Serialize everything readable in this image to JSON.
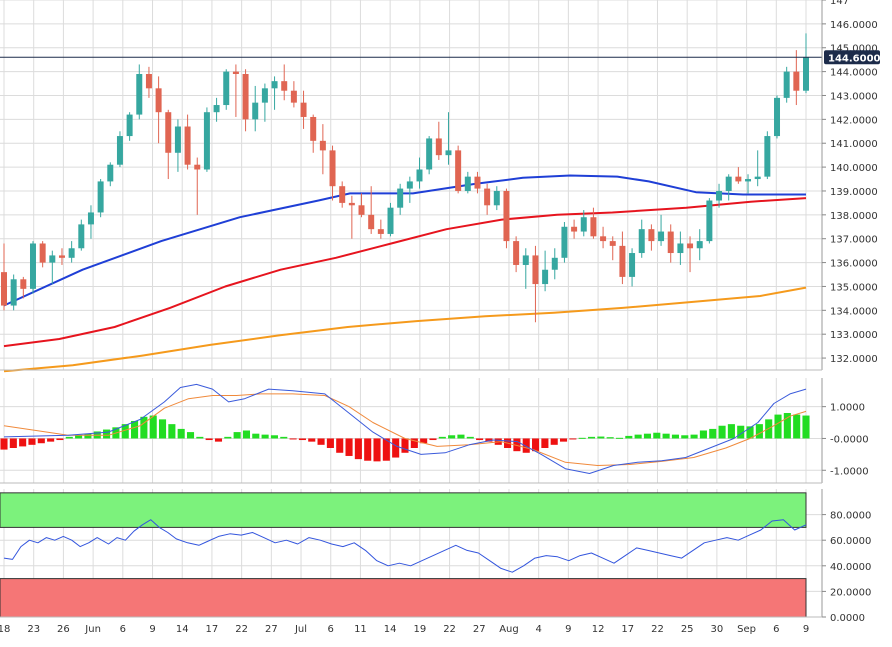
{
  "colors": {
    "up": "#36a7a0",
    "down": "#e06552",
    "sma_fast": "#1f3fd6",
    "sma_mid": "#e6141e",
    "sma_slow": "#f59a1c",
    "macd_line": "#3b5bdb",
    "signal_line": "#f08a3c",
    "hist_pos": "#22dd22",
    "hist_neg": "#ee1111",
    "rsi_line": "#3355dd",
    "overbought_zone": "#7cf27c",
    "oversold_zone": "#f57676",
    "grid": "#dcdcdc",
    "price_tag": "#1c2b4a"
  },
  "last_price": "144.6000",
  "chart_data": [
    {
      "type": "candlestick",
      "x_labels": [
        "18",
        "23",
        "26",
        "Jun",
        "6",
        "9",
        "14",
        "17",
        "22",
        "27",
        "Jul",
        "6",
        "11",
        "14",
        "19",
        "22",
        "27",
        "Aug",
        "4",
        "9",
        "12",
        "17",
        "22",
        "25",
        "30",
        "Sep",
        "6",
        "9"
      ],
      "y_ticks": [
        "132.0000",
        "133.0000",
        "134.0000",
        "135.0000",
        "136.0000",
        "137.0000",
        "138.0000",
        "139.0000",
        "140.0000",
        "141.0000",
        "142.0000",
        "143.0000",
        "144.0000",
        "145.0000",
        "146.0000",
        "147"
      ],
      "ylim": [
        131.5,
        147.0
      ],
      "candles": [
        [
          135.6,
          136.8,
          134.0,
          134.2
        ],
        [
          134.2,
          135.5,
          134.0,
          135.3
        ],
        [
          135.3,
          135.4,
          134.5,
          134.9
        ],
        [
          134.9,
          136.9,
          134.7,
          136.8
        ],
        [
          136.8,
          136.9,
          135.8,
          136.0
        ],
        [
          136.0,
          136.5,
          135.1,
          136.3
        ],
        [
          136.3,
          136.6,
          135.9,
          136.2
        ],
        [
          136.2,
          136.9,
          136.0,
          136.6
        ],
        [
          136.6,
          137.8,
          136.5,
          137.6
        ],
        [
          137.6,
          138.4,
          137.0,
          138.1
        ],
        [
          138.1,
          139.5,
          137.9,
          139.4
        ],
        [
          139.4,
          140.2,
          139.2,
          140.1
        ],
        [
          140.1,
          141.5,
          140.0,
          141.3
        ],
        [
          141.3,
          142.3,
          141.1,
          142.2
        ],
        [
          142.2,
          144.3,
          142.0,
          143.9
        ],
        [
          143.9,
          144.2,
          142.9,
          143.3
        ],
        [
          143.3,
          143.8,
          141.0,
          142.3
        ],
        [
          142.3,
          142.4,
          139.5,
          140.6
        ],
        [
          140.6,
          142.0,
          139.8,
          141.7
        ],
        [
          141.7,
          142.2,
          139.9,
          140.1
        ],
        [
          140.1,
          140.4,
          138.0,
          139.9
        ],
        [
          139.9,
          142.5,
          139.8,
          142.3
        ],
        [
          142.3,
          142.9,
          141.9,
          142.6
        ],
        [
          142.6,
          144.1,
          142.4,
          144.0
        ],
        [
          144.0,
          144.3,
          142.1,
          143.9
        ],
        [
          143.9,
          144.1,
          141.5,
          142.0
        ],
        [
          142.0,
          143.4,
          141.5,
          142.7
        ],
        [
          142.7,
          143.5,
          141.9,
          143.3
        ],
        [
          143.3,
          143.8,
          142.4,
          143.6
        ],
        [
          143.6,
          144.3,
          142.8,
          143.2
        ],
        [
          143.2,
          143.6,
          142.5,
          142.7
        ],
        [
          142.7,
          143.2,
          141.6,
          142.1
        ],
        [
          142.1,
          142.2,
          140.6,
          141.1
        ],
        [
          141.1,
          141.8,
          139.7,
          140.7
        ],
        [
          140.7,
          140.9,
          138.6,
          139.2
        ],
        [
          139.2,
          139.4,
          138.3,
          138.5
        ],
        [
          138.5,
          138.8,
          137.0,
          138.4
        ],
        [
          138.4,
          138.9,
          137.9,
          138.0
        ],
        [
          138.0,
          139.2,
          137.2,
          137.4
        ],
        [
          137.4,
          137.8,
          137.0,
          137.2
        ],
        [
          137.2,
          138.5,
          137.1,
          138.3
        ],
        [
          138.3,
          139.3,
          138.0,
          139.1
        ],
        [
          139.1,
          139.6,
          138.5,
          139.4
        ],
        [
          139.4,
          140.4,
          139.1,
          139.9
        ],
        [
          139.9,
          141.3,
          139.7,
          141.2
        ],
        [
          141.2,
          141.9,
          140.3,
          140.5
        ],
        [
          140.5,
          142.3,
          140.1,
          140.7
        ],
        [
          140.7,
          140.9,
          138.9,
          139.0
        ],
        [
          139.0,
          139.8,
          138.9,
          139.6
        ],
        [
          139.6,
          139.8,
          138.9,
          139.1
        ],
        [
          139.1,
          139.3,
          138.0,
          138.4
        ],
        [
          138.4,
          139.2,
          138.2,
          139.0
        ],
        [
          139.0,
          139.1,
          136.6,
          136.9
        ],
        [
          136.9,
          137.1,
          135.6,
          135.9
        ],
        [
          135.9,
          136.6,
          134.9,
          136.3
        ],
        [
          136.3,
          136.7,
          133.5,
          135.1
        ],
        [
          135.1,
          136.5,
          134.8,
          135.7
        ],
        [
          135.7,
          136.6,
          135.3,
          136.2
        ],
        [
          136.2,
          137.7,
          136.0,
          137.5
        ],
        [
          137.5,
          137.8,
          137.0,
          137.3
        ],
        [
          137.3,
          138.2,
          137.1,
          137.9
        ],
        [
          137.9,
          138.3,
          137.0,
          137.1
        ],
        [
          137.1,
          137.5,
          136.6,
          136.9
        ],
        [
          136.9,
          137.1,
          136.1,
          136.7
        ],
        [
          136.7,
          137.3,
          135.1,
          135.4
        ],
        [
          135.4,
          136.6,
          135.0,
          136.4
        ],
        [
          136.4,
          137.8,
          136.2,
          137.4
        ],
        [
          137.4,
          137.6,
          136.5,
          136.9
        ],
        [
          136.9,
          138.0,
          136.7,
          137.3
        ],
        [
          137.3,
          137.6,
          136.0,
          136.4
        ],
        [
          136.4,
          137.3,
          135.9,
          136.8
        ],
        [
          136.8,
          137.1,
          135.6,
          136.6
        ],
        [
          136.6,
          137.4,
          136.1,
          136.9
        ],
        [
          136.9,
          138.7,
          136.8,
          138.6
        ],
        [
          138.6,
          139.3,
          138.3,
          139.0
        ],
        [
          139.0,
          139.7,
          138.6,
          139.6
        ],
        [
          139.6,
          140.0,
          139.3,
          139.4
        ],
        [
          139.4,
          139.7,
          138.9,
          139.5
        ],
        [
          139.5,
          140.7,
          139.2,
          139.6
        ],
        [
          139.6,
          141.5,
          139.5,
          141.3
        ],
        [
          141.3,
          143.0,
          141.2,
          142.9
        ],
        [
          142.9,
          144.2,
          142.7,
          144.0
        ],
        [
          144.0,
          144.9,
          142.6,
          143.2
        ],
        [
          143.2,
          145.6,
          143.1,
          144.6
        ]
      ],
      "sma_fast": [
        [
          0,
          134.2
        ],
        [
          10,
          135.7
        ],
        [
          20,
          136.9
        ],
        [
          30,
          137.9
        ],
        [
          40,
          138.6
        ],
        [
          44,
          138.9
        ],
        [
          52,
          138.9
        ],
        [
          60,
          139.3
        ],
        [
          66,
          139.55
        ],
        [
          72,
          139.65
        ],
        [
          78,
          139.6
        ],
        [
          82,
          139.4
        ],
        [
          88,
          138.95
        ],
        [
          94,
          138.85
        ],
        [
          102,
          138.85
        ]
      ],
      "sma_mid": [
        [
          0,
          132.5
        ],
        [
          12,
          132.8
        ],
        [
          24,
          133.3
        ],
        [
          36,
          134.1
        ],
        [
          48,
          135.0
        ],
        [
          60,
          135.7
        ],
        [
          72,
          136.2
        ],
        [
          84,
          136.8
        ],
        [
          96,
          137.4
        ],
        [
          108,
          137.8
        ],
        [
          120,
          138.0
        ],
        [
          132,
          138.1
        ],
        [
          148,
          138.3
        ],
        [
          162,
          138.55
        ],
        [
          174,
          138.7
        ]
      ],
      "sma_slow": [
        [
          0,
          131.45
        ],
        [
          18,
          131.7
        ],
        [
          36,
          132.1
        ],
        [
          54,
          132.55
        ],
        [
          72,
          132.95
        ],
        [
          90,
          133.3
        ],
        [
          108,
          133.55
        ],
        [
          126,
          133.75
        ],
        [
          144,
          133.9
        ],
        [
          162,
          134.1
        ],
        [
          180,
          134.35
        ],
        [
          198,
          134.6
        ],
        [
          210,
          134.95
        ]
      ]
    },
    {
      "type": "bar",
      "y_ticks": [
        "1.0000",
        "-0.0000",
        "-1.0000"
      ],
      "ylim": [
        -1.4,
        1.9
      ],
      "histogram": [
        -0.35,
        -0.3,
        -0.25,
        -0.2,
        -0.15,
        -0.1,
        -0.05,
        0.05,
        0.1,
        0.15,
        0.22,
        0.28,
        0.35,
        0.45,
        0.55,
        0.68,
        0.72,
        0.6,
        0.45,
        0.3,
        0.2,
        0.05,
        -0.05,
        -0.1,
        0.05,
        0.2,
        0.25,
        0.15,
        0.12,
        0.1,
        0.05,
        -0.02,
        -0.05,
        -0.1,
        -0.2,
        -0.3,
        -0.45,
        -0.55,
        -0.65,
        -0.7,
        -0.72,
        -0.7,
        -0.6,
        -0.45,
        -0.3,
        -0.15,
        -0.05,
        0.05,
        0.1,
        0.12,
        0.05,
        -0.05,
        -0.1,
        -0.2,
        -0.3,
        -0.4,
        -0.45,
        -0.4,
        -0.3,
        -0.2,
        -0.1,
        -0.03,
        0.02,
        0.05,
        0.06,
        0.04,
        0.02,
        0.08,
        0.12,
        0.15,
        0.18,
        0.15,
        0.12,
        0.1,
        0.12,
        0.25,
        0.3,
        0.4,
        0.45,
        0.4,
        0.38,
        0.45,
        0.6,
        0.75,
        0.8,
        0.75,
        0.72
      ],
      "macd_line": [
        [
          0,
          0.05
        ],
        [
          8,
          0.1
        ],
        [
          13,
          0.2
        ],
        [
          17,
          0.6
        ],
        [
          20,
          1.15
        ],
        [
          22,
          1.6
        ],
        [
          24,
          1.7
        ],
        [
          26,
          1.55
        ],
        [
          28,
          1.15
        ],
        [
          30,
          1.25
        ],
        [
          33,
          1.55
        ],
        [
          36,
          1.5
        ],
        [
          40,
          1.4
        ],
        [
          43,
          0.8
        ],
        [
          46,
          0.2
        ],
        [
          49,
          -0.25
        ],
        [
          52,
          -0.5
        ],
        [
          55,
          -0.45
        ],
        [
          58,
          -0.2
        ],
        [
          61,
          -0.05
        ],
        [
          64,
          -0.1
        ],
        [
          67,
          -0.5
        ],
        [
          70,
          -0.95
        ],
        [
          73,
          -1.1
        ],
        [
          76,
          -0.85
        ],
        [
          79,
          -0.75
        ],
        [
          82,
          -0.7
        ],
        [
          85,
          -0.6
        ],
        [
          88,
          -0.3
        ],
        [
          91,
          0.0
        ],
        [
          94,
          0.5
        ],
        [
          96,
          1.1
        ],
        [
          98,
          1.4
        ],
        [
          100,
          1.55
        ]
      ],
      "signal_line": [
        [
          0,
          0.4
        ],
        [
          8,
          0.1
        ],
        [
          13,
          0.1
        ],
        [
          17,
          0.4
        ],
        [
          20,
          0.95
        ],
        [
          23,
          1.25
        ],
        [
          26,
          1.35
        ],
        [
          29,
          1.35
        ],
        [
          32,
          1.4
        ],
        [
          36,
          1.4
        ],
        [
          40,
          1.35
        ],
        [
          43,
          1.0
        ],
        [
          46,
          0.5
        ],
        [
          50,
          0.0
        ],
        [
          54,
          -0.25
        ],
        [
          58,
          -0.2
        ],
        [
          62,
          -0.1
        ],
        [
          66,
          -0.35
        ],
        [
          70,
          -0.75
        ],
        [
          74,
          -0.85
        ],
        [
          78,
          -0.82
        ],
        [
          82,
          -0.72
        ],
        [
          86,
          -0.6
        ],
        [
          90,
          -0.3
        ],
        [
          93,
          0.0
        ],
        [
          96,
          0.4
        ],
        [
          98,
          0.7
        ],
        [
          100,
          0.85
        ]
      ]
    },
    {
      "type": "line",
      "y_ticks": [
        "80.0000",
        "60.0000",
        "40.0000",
        "20.0000",
        "0.0000"
      ],
      "ylim": [
        0,
        100
      ],
      "overbought": 70,
      "oversold": 30,
      "rsi": [
        [
          0,
          46
        ],
        [
          3,
          45
        ],
        [
          6,
          55
        ],
        [
          9,
          60
        ],
        [
          12,
          58
        ],
        [
          15,
          62
        ],
        [
          18,
          60
        ],
        [
          21,
          63
        ],
        [
          24,
          60
        ],
        [
          27,
          55
        ],
        [
          30,
          58
        ],
        [
          33,
          62
        ],
        [
          37,
          57
        ],
        [
          40,
          62
        ],
        [
          43,
          60
        ],
        [
          46,
          67
        ],
        [
          49,
          72
        ],
        [
          52,
          76
        ],
        [
          55,
          70
        ],
        [
          58,
          66
        ],
        [
          61,
          61
        ],
        [
          65,
          58
        ],
        [
          69,
          56
        ],
        [
          72,
          59
        ],
        [
          76,
          63
        ],
        [
          80,
          65
        ],
        [
          84,
          64
        ],
        [
          88,
          66
        ],
        [
          92,
          62
        ],
        [
          96,
          58
        ],
        [
          100,
          60
        ],
        [
          104,
          57
        ],
        [
          108,
          62
        ],
        [
          112,
          60
        ],
        [
          116,
          57
        ],
        [
          120,
          55
        ],
        [
          124,
          58
        ],
        [
          128,
          52
        ],
        [
          132,
          44
        ],
        [
          136,
          40
        ],
        [
          140,
          42
        ],
        [
          144,
          40
        ],
        [
          148,
          44
        ],
        [
          152,
          48
        ],
        [
          156,
          52
        ],
        [
          160,
          56
        ],
        [
          164,
          52
        ],
        [
          168,
          50
        ],
        [
          172,
          44
        ],
        [
          176,
          38
        ],
        [
          180,
          35
        ],
        [
          184,
          40
        ],
        [
          188,
          46
        ],
        [
          192,
          48
        ],
        [
          196,
          47
        ],
        [
          200,
          44
        ],
        [
          204,
          48
        ],
        [
          208,
          50
        ],
        [
          212,
          46
        ],
        [
          216,
          42
        ],
        [
          220,
          48
        ],
        [
          224,
          54
        ],
        [
          228,
          52
        ],
        [
          232,
          50
        ],
        [
          236,
          48
        ],
        [
          240,
          46
        ],
        [
          244,
          52
        ],
        [
          248,
          58
        ],
        [
          252,
          60
        ],
        [
          256,
          62
        ],
        [
          260,
          60
        ],
        [
          264,
          64
        ],
        [
          268,
          68
        ],
        [
          272,
          75
        ],
        [
          276,
          76
        ],
        [
          280,
          68
        ],
        [
          284,
          72
        ]
      ]
    }
  ]
}
